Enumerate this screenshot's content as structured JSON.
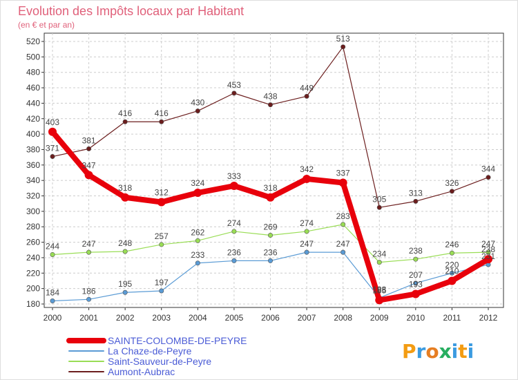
{
  "chart_data": {
    "type": "line",
    "title": "Evolution des Impôts locaux par Habitant",
    "subtitle": "(en € et par an)",
    "categories": [
      "2000",
      "2001",
      "2002",
      "2003",
      "2004",
      "2005",
      "2006",
      "2007",
      "2008",
      "2009",
      "2010",
      "2011",
      "2012"
    ],
    "ylim": [
      180,
      520
    ],
    "yticks": [
      180,
      200,
      220,
      240,
      260,
      280,
      300,
      320,
      340,
      360,
      380,
      400,
      420,
      440,
      460,
      480,
      500,
      520
    ],
    "series": [
      {
        "name": "SAINTE-COLOMBE-DE-PEYRE",
        "color": "#e8000b",
        "values": [
          403,
          347,
          318,
          312,
          324,
          333,
          318,
          342,
          337,
          185,
          193,
          210,
          238
        ]
      },
      {
        "name": "La Chaze-de-Peyre",
        "color": "#5a9bd5",
        "values": [
          184,
          186,
          195,
          197,
          233,
          236,
          236,
          247,
          247,
          188,
          207,
          220,
          231
        ]
      },
      {
        "name": "Saint-Sauveur-de-Peyre",
        "color": "#99dd55",
        "values": [
          244,
          247,
          248,
          257,
          262,
          274,
          269,
          274,
          283,
          234,
          238,
          246,
          247
        ]
      },
      {
        "name": "Aumont-Aubrac",
        "color": "#6b1d1d",
        "values": [
          371,
          381,
          416,
          416,
          430,
          453,
          438,
          449,
          513,
          305,
          313,
          326,
          344
        ]
      }
    ]
  },
  "brand": {
    "logo_letters": [
      "P",
      "r",
      "o",
      "x",
      "i",
      "t",
      "i"
    ]
  }
}
